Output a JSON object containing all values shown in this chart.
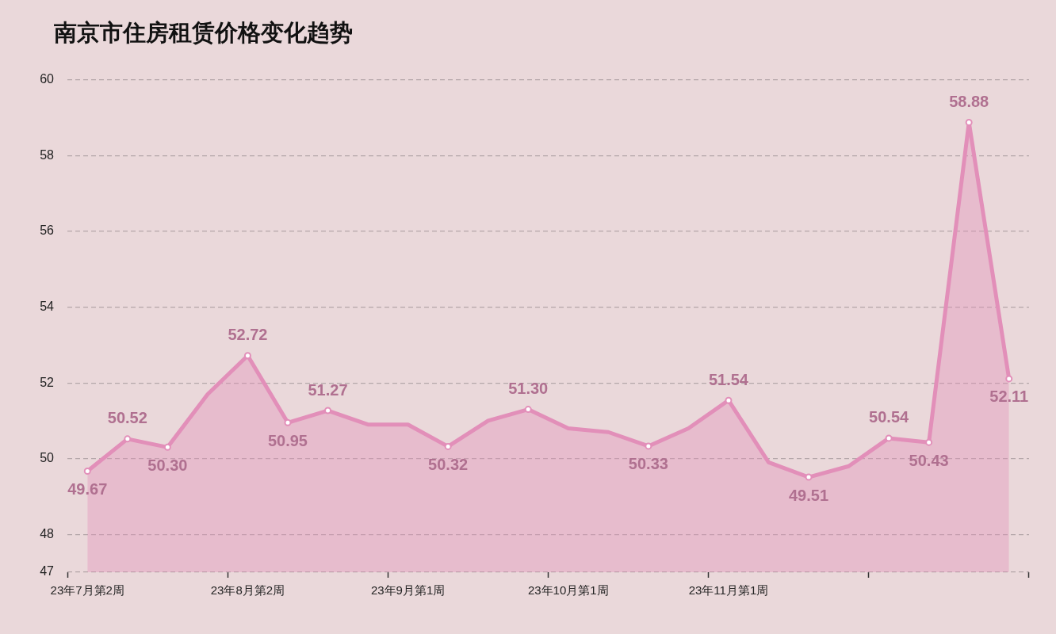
{
  "chart_data": {
    "type": "area",
    "title": "南京市住房租赁价格变化趋势",
    "categories": [
      "23年7月第2周",
      null,
      null,
      null,
      "23年8月第2周",
      null,
      null,
      null,
      "23年9月第1周",
      null,
      null,
      null,
      "23年10月第1周",
      null,
      null,
      null,
      "23年11月第1周",
      null,
      null,
      null,
      null,
      null,
      null,
      null
    ],
    "values": [
      49.67,
      50.52,
      50.3,
      51.7,
      52.72,
      50.95,
      51.27,
      50.9,
      50.9,
      50.32,
      51.0,
      51.3,
      50.8,
      50.7,
      50.33,
      50.8,
      51.54,
      49.9,
      49.51,
      49.8,
      50.54,
      50.43,
      58.88,
      52.11
    ],
    "value_labels": [
      "49.67",
      "50.52",
      "50.30",
      null,
      "52.72",
      "50.95",
      "51.27",
      null,
      null,
      "50.32",
      null,
      "51.30",
      null,
      null,
      "50.33",
      null,
      "51.54",
      null,
      "49.51",
      null,
      "50.54",
      "50.43",
      "58.88",
      "52.11"
    ],
    "color": "#e28fb9",
    "ylim": [
      47,
      60
    ],
    "yticks": [
      47,
      48,
      50,
      52,
      54,
      56,
      58,
      60
    ],
    "grid": "y",
    "marker": "circle"
  }
}
